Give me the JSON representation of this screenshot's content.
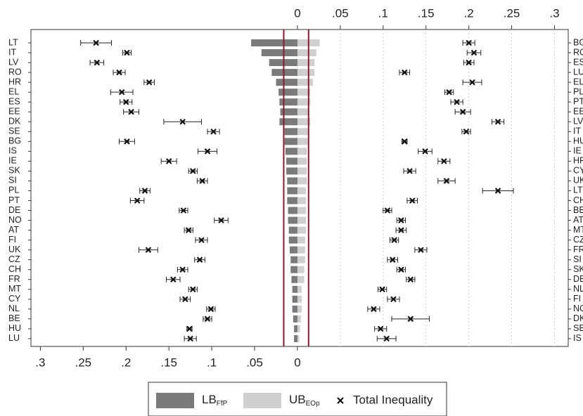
{
  "chart_data": {
    "type": "inequality",
    "left_categories": [
      "LT",
      "IT",
      "LV",
      "RO",
      "HR",
      "EL",
      "ES",
      "EE",
      "DK",
      "SE",
      "BG",
      "IS",
      "IE",
      "SK",
      "SI",
      "PL",
      "PT",
      "DE",
      "NO",
      "AT",
      "FI",
      "UK",
      "CZ",
      "CH",
      "FR",
      "MT",
      "CY",
      "NL",
      "BE",
      "HU",
      "LU"
    ],
    "lb_values": [
      0.054,
      0.042,
      0.033,
      0.03,
      0.025,
      0.022,
      0.021,
      0.02,
      0.021,
      0.015,
      0.015,
      0.014,
      0.013,
      0.013,
      0.012,
      0.012,
      0.012,
      0.011,
      0.011,
      0.01,
      0.01,
      0.009,
      0.008,
      0.008,
      0.007,
      0.006,
      0.006,
      0.006,
      0.005,
      0.004,
      0.004
    ],
    "ub_values": [
      0.026,
      0.022,
      0.02,
      0.02,
      0.018,
      0.015,
      0.015,
      0.014,
      0.015,
      0.012,
      0.012,
      0.011,
      0.011,
      0.011,
      0.011,
      0.01,
      0.01,
      0.01,
      0.01,
      0.01,
      0.009,
      0.009,
      0.009,
      0.008,
      0.008,
      0.005,
      0.005,
      0.005,
      0.004,
      0.003,
      0.002
    ],
    "left_total": [
      0.235,
      0.199,
      0.234,
      0.208,
      0.173,
      0.205,
      0.2,
      0.194,
      0.134,
      0.098,
      0.199,
      0.105,
      0.15,
      0.122,
      0.111,
      0.178,
      0.187,
      0.133,
      0.089,
      0.127,
      0.112,
      0.174,
      0.114,
      0.134,
      0.145,
      0.122,
      0.131,
      0.101,
      0.105,
      0.126,
      0.125
    ],
    "left_total_err": [
      0.018,
      0.005,
      0.008,
      0.007,
      0.006,
      0.013,
      0.007,
      0.009,
      0.022,
      0.007,
      0.009,
      0.011,
      0.009,
      0.005,
      0.006,
      0.006,
      0.008,
      0.005,
      0.008,
      0.005,
      0.007,
      0.011,
      0.006,
      0.006,
      0.008,
      0.005,
      0.006,
      0.005,
      0.005,
      0.003,
      0.007
    ],
    "right_categories": [
      "BG",
      "RO",
      "ES",
      "LU",
      "EL",
      "PL",
      "PT",
      "EE",
      "LV",
      "IT",
      "HU",
      "IE",
      "HR",
      "CY",
      "UK",
      "LT",
      "CH",
      "BE",
      "AT",
      "MT",
      "CZ",
      "FR",
      "SI",
      "SK",
      "DE",
      "NL",
      "FI",
      "NO",
      "DK",
      "SE",
      "IS"
    ],
    "right_total": [
      0.2,
      0.206,
      0.2,
      0.125,
      0.204,
      0.177,
      0.186,
      0.193,
      0.234,
      0.197,
      0.125,
      0.149,
      0.171,
      0.131,
      0.174,
      0.234,
      0.134,
      0.105,
      0.121,
      0.121,
      0.113,
      0.144,
      0.111,
      0.121,
      0.132,
      0.099,
      0.112,
      0.089,
      0.132,
      0.097,
      0.104
    ],
    "right_total_err": [
      0.007,
      0.008,
      0.006,
      0.006,
      0.011,
      0.005,
      0.007,
      0.009,
      0.007,
      0.005,
      0.003,
      0.008,
      0.007,
      0.007,
      0.01,
      0.018,
      0.006,
      0.005,
      0.005,
      0.006,
      0.005,
      0.007,
      0.006,
      0.005,
      0.005,
      0.005,
      0.007,
      0.007,
      0.022,
      0.007,
      0.011
    ],
    "lb_ref": 0.016,
    "ub_ref": 0.013,
    "xlim": [
      -0.311,
      0.316
    ],
    "xticks": [
      0,
      {
        "value": 0.05,
        "label": ".05"
      },
      {
        "value": 0.1,
        "label": ".1"
      },
      {
        "value": 0.15,
        "label": ".15"
      },
      {
        "value": 0.2,
        "label": ".2"
      },
      {
        "value": 0.25,
        "label": ".25"
      },
      {
        "value": 0.3,
        "label": ".3"
      }
    ],
    "x2lim": [
      0.311,
      -0.316
    ],
    "x2ticks": [
      {
        "value": 0.3,
        "label": ".3"
      },
      {
        "value": 0.25,
        "label": ".25"
      },
      {
        "value": 0.2,
        "label": ".2"
      },
      {
        "value": 0.15,
        "label": ".15"
      },
      {
        "value": 0.1,
        "label": ".1"
      },
      {
        "value": 0.05,
        "label": ".05"
      },
      0
    ],
    "grid": true,
    "legend": [
      {
        "label": "LB",
        "sub": "FfP",
        "color": "#7a7a7a"
      },
      {
        "label": "UB",
        "sub": "EOp",
        "color": "#cfcfcf"
      },
      {
        "label": "Total Inequality"
      }
    ],
    "ref_color": "#8b1a2a"
  }
}
